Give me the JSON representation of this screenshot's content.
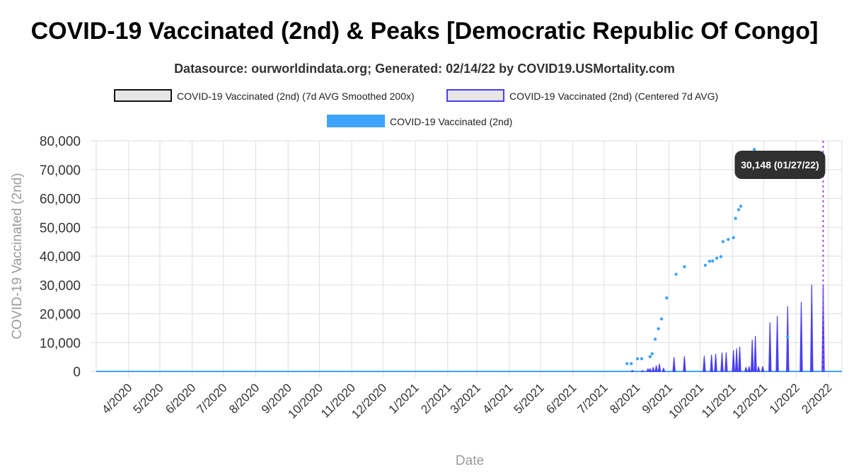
{
  "chart_data": {
    "type": "line",
    "title": "COVID-19 Vaccinated (2nd) & Peaks [Democratic Republic Of Congo]",
    "subtitle": "Datasource: ourworldindata.org; Generated: 02/14/22 by COVID19.USMortality.com",
    "xlabel": "Date",
    "ylabel": "COVID-19 Vaccinated (2nd)",
    "ylim": [
      0,
      80000
    ],
    "y_ticks": [
      "0",
      "10,000",
      "20,000",
      "30,000",
      "40,000",
      "50,000",
      "60,000",
      "70,000",
      "80,000"
    ],
    "x_range": [
      "2020-03-01",
      "2022-02-14"
    ],
    "x_ticks": [
      "4/2020",
      "5/2020",
      "6/2020",
      "7/2020",
      "8/2020",
      "9/2020",
      "10/2020",
      "11/2020",
      "12/2020",
      "1/2021",
      "2/2021",
      "3/2021",
      "4/2021",
      "5/2021",
      "6/2021",
      "7/2021",
      "8/2021",
      "9/2021",
      "10/2021",
      "11/2021",
      "12/2021",
      "1/2022",
      "2/2022"
    ],
    "grid": true,
    "legend": [
      {
        "label": "COVID-19 Vaccinated (2nd) (7d AVG Smoothed 200x)",
        "swatch_fill": "#e6e6e6",
        "swatch_border": "#111111"
      },
      {
        "label": "COVID-19 Vaccinated (2nd) (Centered 7d AVG)",
        "swatch_fill": "#e6e6e6",
        "swatch_border": "#4a3ff0"
      },
      {
        "label": "COVID-19 Vaccinated (2nd)",
        "swatch_fill": "#3ea3ff",
        "swatch_border": "#3ea3ff"
      }
    ],
    "legend_position": "top",
    "colors": {
      "smoothed": "#111111",
      "centered_avg": "#4a3ff0",
      "daily": "#3ea3ff",
      "peak_marker": "#a24bf0",
      "grid": "#dedede"
    },
    "series": [
      {
        "name": "COVID-19 Vaccinated (2nd)",
        "style": "dots",
        "points": [
          [
            "2021-07-23",
            2700
          ],
          [
            "2021-07-27",
            2700
          ],
          [
            "2021-08-02",
            4400
          ],
          [
            "2021-08-06",
            4400
          ],
          [
            "2021-08-14",
            5100
          ],
          [
            "2021-08-16",
            6100
          ],
          [
            "2021-08-19",
            11200
          ],
          [
            "2021-08-22",
            14800
          ],
          [
            "2021-08-25",
            18200
          ],
          [
            "2021-08-30",
            25500
          ],
          [
            "2021-09-08",
            33700
          ],
          [
            "2021-09-16",
            36300
          ],
          [
            "2021-10-06",
            36800
          ],
          [
            "2021-10-10",
            38200
          ],
          [
            "2021-10-13",
            38300
          ],
          [
            "2021-10-17",
            39300
          ],
          [
            "2021-10-21",
            39800
          ],
          [
            "2021-10-23",
            45000
          ],
          [
            "2021-10-28",
            45800
          ],
          [
            "2021-11-02",
            46400
          ],
          [
            "2021-11-04",
            53100
          ],
          [
            "2021-11-07",
            56100
          ],
          [
            "2021-11-09",
            57300
          ],
          [
            "2021-11-22",
            77000
          ],
          [
            "2021-12-24",
            12000
          ]
        ]
      },
      {
        "name": "COVID-19 Vaccinated (2nd) (Centered 7d AVG)",
        "style": "spikes",
        "points": [
          [
            "2021-07-28",
            400
          ],
          [
            "2021-08-07",
            300
          ],
          [
            "2021-08-12",
            900
          ],
          [
            "2021-08-14",
            1000
          ],
          [
            "2021-08-17",
            1400
          ],
          [
            "2021-08-20",
            2000
          ],
          [
            "2021-08-23",
            2600
          ],
          [
            "2021-08-27",
            1100
          ],
          [
            "2021-09-06",
            4800
          ],
          [
            "2021-09-16",
            5200
          ],
          [
            "2021-10-05",
            5300
          ],
          [
            "2021-10-12",
            5700
          ],
          [
            "2021-10-16",
            6000
          ],
          [
            "2021-10-22",
            6400
          ],
          [
            "2021-10-26",
            6500
          ],
          [
            "2021-11-02",
            7300
          ],
          [
            "2021-11-05",
            7900
          ],
          [
            "2021-11-08",
            8500
          ],
          [
            "2021-11-14",
            1400
          ],
          [
            "2021-11-17",
            1700
          ],
          [
            "2021-11-20",
            10900
          ],
          [
            "2021-11-23",
            12200
          ],
          [
            "2021-11-26",
            1600
          ],
          [
            "2021-11-30",
            1700
          ],
          [
            "2021-12-07",
            16900
          ],
          [
            "2021-12-14",
            19100
          ],
          [
            "2021-12-24",
            22500
          ],
          [
            "2022-01-06",
            24000
          ],
          [
            "2022-01-16",
            30000
          ],
          [
            "2022-01-27",
            30148
          ]
        ]
      },
      {
        "name": "COVID-19 Vaccinated (2nd) (7d AVG Smoothed 200x)",
        "style": "line",
        "points": [
          [
            "2020-03-01",
            0
          ],
          [
            "2022-02-14",
            0
          ]
        ]
      }
    ],
    "annotations": [
      {
        "type": "vertical-line",
        "x": "2022-01-27"
      },
      {
        "type": "tooltip",
        "x": "2022-01-27",
        "text": "30,148 (01/27/22)"
      }
    ]
  }
}
